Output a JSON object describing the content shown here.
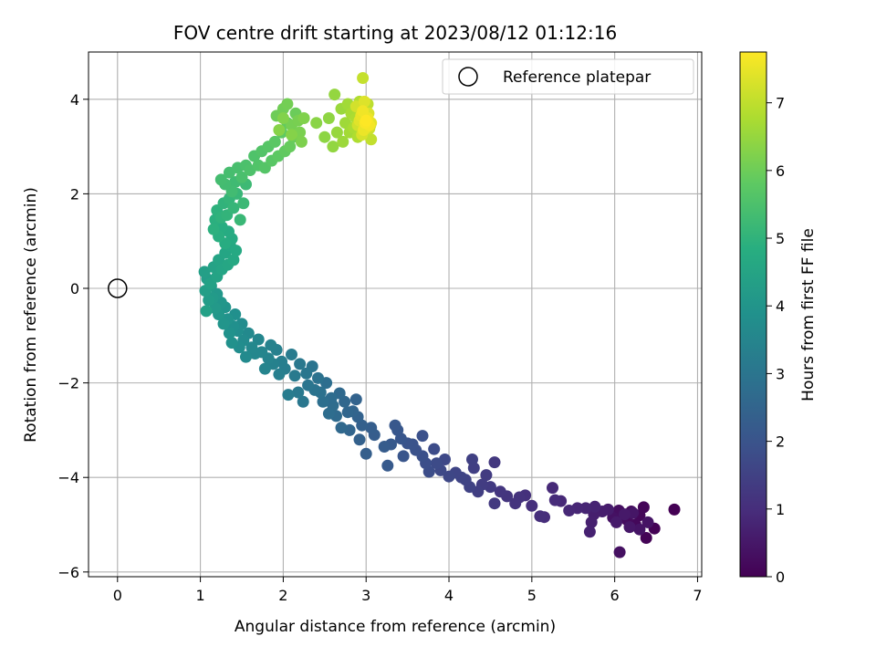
{
  "chart_data": {
    "type": "scatter",
    "title": "FOV centre drift starting at 2023/08/12 01:12:16",
    "xlabel": "Angular distance from reference (arcmin)",
    "ylabel": "Rotation from reference (arcmin)",
    "xlim": [
      -0.35,
      7.05
    ],
    "ylim": [
      -6.1,
      5.0
    ],
    "xticks": [
      0,
      1,
      2,
      3,
      4,
      5,
      6,
      7
    ],
    "yticks": [
      -6,
      -4,
      -2,
      0,
      2,
      4
    ],
    "xtick_labels": [
      "0",
      "1",
      "2",
      "3",
      "4",
      "5",
      "6",
      "7"
    ],
    "ytick_labels": [
      "−6",
      "−4",
      "−2",
      "0",
      "2",
      "4"
    ],
    "grid": true,
    "legend": {
      "position": "top-right",
      "entries": [
        "Reference platepar"
      ]
    },
    "reference_point": {
      "x": 0,
      "y": 0,
      "name": "Reference platepar"
    },
    "colorbar": {
      "label": "Hours from first FF file",
      "range": [
        0,
        7.75
      ],
      "ticks": [
        0,
        1,
        2,
        3,
        4,
        5,
        6,
        7
      ],
      "tick_labels": [
        "0",
        "1",
        "2",
        "3",
        "4",
        "5",
        "6",
        "7"
      ],
      "colormap": "viridis"
    },
    "points": [
      [
        6.72,
        -4.68,
        0.0
      ],
      [
        6.48,
        -5.08,
        0.03
      ],
      [
        6.38,
        -5.28,
        0.06
      ],
      [
        6.35,
        -4.63,
        0.1
      ],
      [
        6.3,
        -4.8,
        0.13
      ],
      [
        6.25,
        -5.0,
        0.16
      ],
      [
        6.2,
        -4.72,
        0.2
      ],
      [
        6.15,
        -4.9,
        0.23
      ],
      [
        6.1,
        -4.85,
        0.27
      ],
      [
        6.05,
        -4.7,
        0.3
      ],
      [
        6.06,
        -5.58,
        0.33
      ],
      [
        5.98,
        -4.85,
        0.37
      ],
      [
        6.4,
        -4.95,
        0.4
      ],
      [
        6.3,
        -5.1,
        0.43
      ],
      [
        6.22,
        -4.75,
        0.47
      ],
      [
        6.18,
        -5.05,
        0.5
      ],
      [
        6.12,
        -4.78,
        0.53
      ],
      [
        6.02,
        -4.95,
        0.57
      ],
      [
        5.92,
        -4.68,
        0.6
      ],
      [
        5.85,
        -4.72,
        0.63
      ],
      [
        5.75,
        -4.78,
        0.67
      ],
      [
        5.72,
        -4.95,
        0.7
      ],
      [
        5.7,
        -5.15,
        0.73
      ],
      [
        5.76,
        -4.62,
        0.77
      ],
      [
        5.65,
        -4.65,
        0.8
      ],
      [
        5.55,
        -4.65,
        0.83
      ],
      [
        5.45,
        -4.7,
        0.87
      ],
      [
        5.35,
        -4.5,
        0.9
      ],
      [
        5.25,
        -4.22,
        0.93
      ],
      [
        5.28,
        -4.48,
        0.97
      ],
      [
        5.15,
        -4.84,
        1.0
      ],
      [
        5.1,
        -4.82,
        1.04
      ],
      [
        5.0,
        -4.6,
        1.07
      ],
      [
        4.92,
        -4.38,
        1.1
      ],
      [
        4.85,
        -4.42,
        1.14
      ],
      [
        4.8,
        -4.55,
        1.17
      ],
      [
        4.7,
        -4.4,
        1.2
      ],
      [
        4.62,
        -4.3,
        1.24
      ],
      [
        4.55,
        -3.68,
        1.27
      ],
      [
        4.55,
        -4.55,
        1.3
      ],
      [
        4.5,
        -4.2,
        1.34
      ],
      [
        4.45,
        -3.95,
        1.37
      ],
      [
        4.4,
        -4.15,
        1.4
      ],
      [
        4.35,
        -4.3,
        1.44
      ],
      [
        4.3,
        -3.8,
        1.47
      ],
      [
        4.28,
        -3.62,
        1.5
      ],
      [
        4.25,
        -4.2,
        1.54
      ],
      [
        4.2,
        -4.05,
        1.57
      ],
      [
        4.15,
        -4.0,
        1.6
      ],
      [
        4.08,
        -3.9,
        1.63
      ],
      [
        4.0,
        -3.98,
        1.67
      ],
      [
        3.95,
        -3.62,
        1.7
      ],
      [
        3.9,
        -3.85,
        1.73
      ],
      [
        3.85,
        -3.7,
        1.77
      ],
      [
        3.82,
        -3.4,
        1.8
      ],
      [
        3.76,
        -3.88,
        1.83
      ],
      [
        3.72,
        -3.7,
        1.87
      ],
      [
        3.68,
        -3.55,
        1.9
      ],
      [
        3.68,
        -3.12,
        1.93
      ],
      [
        3.6,
        -3.42,
        1.96
      ],
      [
        3.56,
        -3.3,
        2.0
      ],
      [
        3.5,
        -3.28,
        2.03
      ],
      [
        3.45,
        -3.55,
        2.06
      ],
      [
        3.42,
        -3.18,
        2.1
      ],
      [
        3.38,
        -3.0,
        2.13
      ],
      [
        3.35,
        -2.9,
        2.16
      ],
      [
        3.3,
        -3.3,
        2.19
      ],
      [
        3.26,
        -3.75,
        2.22
      ],
      [
        3.22,
        -3.35,
        2.26
      ],
      [
        3.1,
        -3.1,
        2.29
      ],
      [
        3.06,
        -2.95,
        2.32
      ],
      [
        3.0,
        -3.5,
        2.35
      ],
      [
        2.95,
        -2.9,
        2.38
      ],
      [
        2.92,
        -3.2,
        2.42
      ],
      [
        2.9,
        -2.72,
        2.45
      ],
      [
        2.88,
        -2.35,
        2.48
      ],
      [
        2.84,
        -2.6,
        2.51
      ],
      [
        2.8,
        -3.0,
        2.54
      ],
      [
        2.78,
        -2.62,
        2.58
      ],
      [
        2.74,
        -2.4,
        2.61
      ],
      [
        2.7,
        -2.95,
        2.64
      ],
      [
        2.68,
        -2.22,
        2.67
      ],
      [
        2.64,
        -2.7,
        2.7
      ],
      [
        2.6,
        -2.48,
        2.74
      ],
      [
        2.58,
        -2.32,
        2.77
      ],
      [
        2.55,
        -2.65,
        2.8
      ],
      [
        2.52,
        -2.0,
        2.83
      ],
      [
        2.48,
        -2.4,
        2.86
      ],
      [
        2.45,
        -2.2,
        2.9
      ],
      [
        2.42,
        -1.9,
        2.93
      ],
      [
        2.38,
        -2.15,
        2.96
      ],
      [
        2.35,
        -1.65,
        2.99
      ],
      [
        2.3,
        -2.05,
        3.02
      ],
      [
        2.28,
        -1.8,
        3.06
      ],
      [
        2.24,
        -2.4,
        3.09
      ],
      [
        2.2,
        -1.6,
        3.12
      ],
      [
        2.18,
        -2.2,
        3.15
      ],
      [
        2.14,
        -1.85,
        3.18
      ],
      [
        2.1,
        -1.4,
        3.22
      ],
      [
        2.06,
        -2.25,
        3.25
      ],
      [
        2.02,
        -1.7,
        3.28
      ],
      [
        1.98,
        -1.55,
        3.31
      ],
      [
        1.95,
        -1.82,
        3.34
      ],
      [
        1.92,
        -1.3,
        3.38
      ],
      [
        1.88,
        -1.6,
        3.41
      ],
      [
        1.85,
        -1.2,
        3.44
      ],
      [
        1.82,
        -1.48,
        3.47
      ],
      [
        1.78,
        -1.7,
        3.5
      ],
      [
        1.74,
        -1.35,
        3.54
      ],
      [
        1.7,
        -1.08,
        3.57
      ],
      [
        1.66,
        -1.38,
        3.6
      ],
      [
        1.62,
        -1.25,
        3.63
      ],
      [
        1.58,
        -0.95,
        3.66
      ],
      [
        1.55,
        -1.45,
        3.7
      ],
      [
        1.52,
        -1.1,
        3.73
      ],
      [
        1.5,
        -0.75,
        3.76
      ],
      [
        1.47,
        -1.25,
        3.79
      ],
      [
        1.45,
        -0.9,
        3.82
      ],
      [
        1.42,
        -0.55,
        3.86
      ],
      [
        1.4,
        -0.8,
        3.89
      ],
      [
        1.38,
        -1.15,
        3.92
      ],
      [
        1.35,
        -0.95,
        3.95
      ],
      [
        1.33,
        -0.65,
        3.98
      ],
      [
        1.3,
        -0.4,
        4.02
      ],
      [
        1.28,
        -0.75,
        4.05
      ],
      [
        1.25,
        -0.3,
        4.08
      ],
      [
        1.22,
        -0.55,
        4.11
      ],
      [
        1.2,
        -0.12,
        4.14
      ],
      [
        1.18,
        -0.42,
        4.18
      ],
      [
        1.15,
        -0.2,
        4.21
      ],
      [
        1.13,
        0.05,
        4.24
      ],
      [
        1.1,
        -0.25,
        4.27
      ],
      [
        1.08,
        0.2,
        4.3
      ],
      [
        1.06,
        -0.05,
        4.34
      ],
      [
        1.05,
        0.35,
        4.37
      ],
      [
        1.07,
        -0.48,
        4.4
      ],
      [
        1.12,
        0.1,
        4.43
      ],
      [
        1.16,
        0.45,
        4.46
      ],
      [
        1.2,
        0.25,
        4.5
      ],
      [
        1.22,
        0.6,
        4.53
      ],
      [
        1.26,
        0.4,
        4.56
      ],
      [
        1.3,
        0.75,
        4.59
      ],
      [
        1.33,
        0.5,
        4.62
      ],
      [
        1.36,
        0.9,
        4.66
      ],
      [
        1.4,
        0.6,
        4.69
      ],
      [
        1.43,
        0.8,
        4.72
      ],
      [
        1.38,
        1.05,
        4.75
      ],
      [
        1.34,
        1.2,
        4.78
      ],
      [
        1.3,
        0.95,
        4.82
      ],
      [
        1.26,
        1.3,
        4.85
      ],
      [
        1.22,
        1.1,
        4.88
      ],
      [
        1.18,
        1.45,
        4.91
      ],
      [
        1.16,
        1.25,
        4.94
      ],
      [
        1.2,
        1.65,
        4.98
      ],
      [
        1.25,
        1.5,
        5.01
      ],
      [
        1.28,
        1.8,
        5.04
      ],
      [
        1.32,
        1.55,
        5.07
      ],
      [
        1.35,
        1.9,
        5.1
      ],
      [
        1.4,
        1.7,
        5.14
      ],
      [
        1.44,
        2.0,
        5.17
      ],
      [
        1.48,
        1.45,
        5.2
      ],
      [
        1.52,
        1.8,
        5.23
      ],
      [
        1.55,
        2.2,
        5.26
      ],
      [
        1.42,
        2.25,
        5.3
      ],
      [
        1.38,
        2.05,
        5.33
      ],
      [
        1.3,
        2.2,
        5.36
      ],
      [
        1.25,
        2.3,
        5.39
      ],
      [
        1.35,
        2.45,
        5.42
      ],
      [
        1.45,
        2.55,
        5.46
      ],
      [
        1.5,
        2.35,
        5.49
      ],
      [
        1.55,
        2.6,
        5.52
      ],
      [
        1.6,
        2.5,
        5.55
      ],
      [
        1.65,
        2.8,
        5.58
      ],
      [
        1.7,
        2.6,
        5.62
      ],
      [
        1.74,
        2.9,
        5.65
      ],
      [
        1.78,
        2.55,
        5.68
      ],
      [
        1.82,
        3.0,
        5.71
      ],
      [
        1.86,
        2.7,
        5.74
      ],
      [
        1.9,
        3.1,
        5.78
      ],
      [
        1.94,
        2.8,
        5.81
      ],
      [
        1.98,
        3.3,
        5.84
      ],
      [
        2.02,
        2.9,
        5.87
      ],
      [
        2.05,
        3.5,
        5.9
      ],
      [
        2.08,
        3.0,
        5.94
      ],
      [
        2.12,
        3.2,
        5.97
      ],
      [
        2.15,
        3.7,
        6.0
      ],
      [
        1.92,
        3.65,
        6.03
      ],
      [
        2.0,
        3.8,
        6.06
      ],
      [
        2.05,
        3.9,
        6.1
      ],
      [
        2.1,
        3.45,
        6.13
      ],
      [
        2.18,
        3.55,
        6.16
      ],
      [
        2.2,
        3.3,
        6.19
      ],
      [
        2.22,
        3.1,
        6.22
      ],
      [
        2.25,
        3.6,
        6.26
      ],
      [
        2.0,
        3.6,
        6.29
      ],
      [
        2.1,
        3.25,
        6.32
      ],
      [
        1.95,
        3.35,
        6.35
      ],
      [
        2.4,
        3.5,
        6.38
      ],
      [
        2.5,
        3.2,
        6.42
      ],
      [
        2.55,
        3.6,
        6.45
      ],
      [
        2.6,
        3.0,
        6.48
      ],
      [
        2.62,
        4.1,
        6.51
      ],
      [
        2.65,
        3.3,
        6.54
      ],
      [
        2.7,
        3.8,
        6.58
      ],
      [
        2.72,
        3.1,
        6.61
      ],
      [
        2.75,
        3.5,
        6.64
      ],
      [
        2.78,
        3.9,
        6.67
      ],
      [
        2.8,
        3.3,
        6.7
      ],
      [
        2.82,
        3.7,
        6.74
      ],
      [
        2.85,
        3.4,
        6.77
      ],
      [
        2.88,
        3.6,
        6.8
      ],
      [
        2.9,
        3.2,
        6.83
      ],
      [
        2.92,
        3.95,
        6.86
      ],
      [
        2.95,
        3.5,
        6.9
      ],
      [
        2.97,
        3.7,
        6.93
      ],
      [
        3.0,
        3.3,
        6.96
      ],
      [
        3.02,
        3.9,
        6.99
      ],
      [
        3.05,
        3.45,
        7.02
      ],
      [
        3.06,
        3.15,
        7.06
      ],
      [
        2.96,
        4.45,
        7.09
      ],
      [
        2.93,
        3.8,
        7.12
      ],
      [
        2.99,
        3.6,
        7.15
      ],
      [
        3.04,
        3.38,
        7.18
      ],
      [
        2.9,
        3.45,
        7.22
      ],
      [
        2.88,
        3.85,
        7.25
      ],
      [
        3.0,
        3.55,
        7.28
      ],
      [
        2.95,
        3.25,
        7.31
      ],
      [
        3.03,
        3.7,
        7.34
      ],
      [
        2.98,
        3.95,
        7.38
      ],
      [
        2.92,
        3.55,
        7.41
      ],
      [
        3.06,
        3.5,
        7.44
      ],
      [
        3.0,
        3.4,
        7.47
      ],
      [
        2.94,
        3.65,
        7.5
      ],
      [
        2.97,
        3.35,
        7.54
      ],
      [
        3.02,
        3.6,
        7.57
      ],
      [
        2.96,
        3.75,
        7.6
      ],
      [
        3.04,
        3.45,
        7.64
      ],
      [
        2.99,
        3.5,
        7.7
      ],
      [
        3.0,
        3.55,
        7.75
      ]
    ]
  }
}
